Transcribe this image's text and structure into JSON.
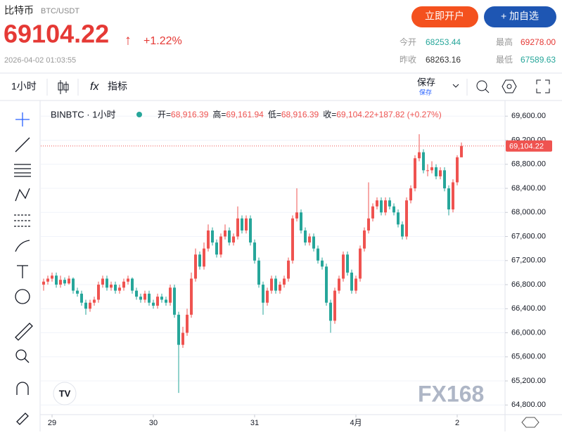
{
  "header": {
    "name": "比特币",
    "pair": "BTC/USDT",
    "price": "69104.22",
    "arrow": "↑",
    "change": "+1.22%",
    "timestamp": "2026-04-02 01:03:55",
    "buttons": [
      "立即开户",
      "+ 加自选"
    ],
    "stats": [
      {
        "label": "今开",
        "value": "68253.44"
      },
      {
        "label": "最高",
        "value": "69278.00"
      },
      {
        "label": "昨收",
        "value": "68263.16"
      },
      {
        "label": "最低",
        "value": "67589.63"
      }
    ]
  },
  "toolbar": {
    "interval": "1小时",
    "indicators": "指标",
    "save": "保存",
    "save_sub": "保存"
  },
  "chart_data": {
    "type": "candlestick",
    "symbol": "BINBTC · 1小时",
    "legend": [
      {
        "label": "开=",
        "value": "68,916.39"
      },
      {
        "label": "高=",
        "value": "69,161.94"
      },
      {
        "label": "低=",
        "value": "68,916.39"
      },
      {
        "label": "收=",
        "value": "69,104.22"
      },
      {
        "label": "",
        "value": "+187.82 (+0.27%)"
      }
    ],
    "up_color": "#ef5350",
    "down_color": "#26a69a",
    "xlim": [
      -1,
      109
    ],
    "xticks": [
      {
        "value": 2,
        "label": "29"
      },
      {
        "value": 26,
        "label": "30"
      },
      {
        "value": 50,
        "label": "31"
      },
      {
        "value": 74,
        "label": "4月"
      },
      {
        "value": 98,
        "label": "2"
      }
    ],
    "ylim": [
      64640,
      69860
    ],
    "yticks": [
      {
        "value": 64800,
        "label": "64,800.00"
      },
      {
        "value": 65200,
        "label": "65,200.00"
      },
      {
        "value": 65600,
        "label": "65,600.00"
      },
      {
        "value": 66000,
        "label": "66,000.00"
      },
      {
        "value": 66400,
        "label": "66,400.00"
      },
      {
        "value": 66800,
        "label": "66,800.00"
      },
      {
        "value": 67200,
        "label": "67,200.00"
      },
      {
        "value": 67600,
        "label": "67,600.00"
      },
      {
        "value": 68000,
        "label": "68,000.00"
      },
      {
        "value": 68400,
        "label": "68,400.00"
      },
      {
        "value": 68800,
        "label": "68,800.00"
      },
      {
        "value": 69200,
        "label": "69,200.00"
      },
      {
        "value": 69600,
        "label": "69,600.00"
      }
    ],
    "last_price": {
      "value": 69104.22,
      "label": "69,104.22"
    },
    "ohlc": [
      [
        66800,
        66900,
        66700,
        66850
      ],
      [
        66850,
        66950,
        66800,
        66900
      ],
      [
        66900,
        67000,
        66850,
        66950
      ],
      [
        66950,
        67000,
        66750,
        66800
      ],
      [
        66800,
        66950,
        66750,
        66880
      ],
      [
        66880,
        66920,
        66780,
        66820
      ],
      [
        66820,
        66950,
        66800,
        66900
      ],
      [
        66900,
        66920,
        66650,
        66700
      ],
      [
        66700,
        66750,
        66600,
        66650
      ],
      [
        66650,
        66700,
        66450,
        66500
      ],
      [
        66500,
        66550,
        66300,
        66400
      ],
      [
        66400,
        66550,
        66350,
        66500
      ],
      [
        66500,
        66600,
        66450,
        66550
      ],
      [
        66550,
        66850,
        66500,
        66800
      ],
      [
        66800,
        66950,
        66750,
        66900
      ],
      [
        66900,
        66950,
        66700,
        66750
      ],
      [
        66750,
        66850,
        66700,
        66800
      ],
      [
        66800,
        66850,
        66650,
        66700
      ],
      [
        66700,
        66800,
        66650,
        66750
      ],
      [
        66750,
        66900,
        66700,
        66850
      ],
      [
        66850,
        66950,
        66800,
        66900
      ],
      [
        66900,
        66920,
        66650,
        66700
      ],
      [
        66700,
        66750,
        66550,
        66600
      ],
      [
        66600,
        66650,
        66500,
        66550
      ],
      [
        66550,
        66700,
        66500,
        66650
      ],
      [
        66650,
        66700,
        66450,
        66500
      ],
      [
        66500,
        66550,
        66400,
        66450
      ],
      [
        66450,
        66650,
        66400,
        66600
      ],
      [
        66600,
        66650,
        66500,
        66550
      ],
      [
        66550,
        66600,
        66450,
        66500
      ],
      [
        66500,
        66800,
        66450,
        66750
      ],
      [
        66750,
        66800,
        66250,
        66300
      ],
      [
        66300,
        66350,
        65000,
        65800
      ],
      [
        65800,
        66100,
        65750,
        66000
      ],
      [
        66000,
        66400,
        65950,
        66300
      ],
      [
        66300,
        67000,
        66250,
        66900
      ],
      [
        66900,
        67400,
        66850,
        67300
      ],
      [
        67300,
        67350,
        67050,
        67100
      ],
      [
        67100,
        67500,
        67050,
        67400
      ],
      [
        67400,
        67800,
        67350,
        67700
      ],
      [
        67700,
        67750,
        67450,
        67500
      ],
      [
        67500,
        67550,
        67250,
        67300
      ],
      [
        67300,
        67650,
        67250,
        67600
      ],
      [
        67600,
        67800,
        67550,
        67700
      ],
      [
        67700,
        67750,
        67450,
        67500
      ],
      [
        67500,
        67650,
        67450,
        67600
      ],
      [
        67600,
        68100,
        67550,
        67900
      ],
      [
        67900,
        67950,
        67650,
        67700
      ],
      [
        67700,
        67950,
        67650,
        67900
      ],
      [
        67900,
        67950,
        67450,
        67500
      ],
      [
        67500,
        67550,
        67150,
        67200
      ],
      [
        67200,
        67250,
        66750,
        66800
      ],
      [
        66800,
        66850,
        66300,
        66500
      ],
      [
        66500,
        66750,
        66450,
        66700
      ],
      [
        66700,
        66950,
        66650,
        66900
      ],
      [
        66900,
        66950,
        66650,
        66700
      ],
      [
        66700,
        66850,
        66650,
        66800
      ],
      [
        66800,
        66950,
        66750,
        66900
      ],
      [
        66900,
        67250,
        66850,
        67200
      ],
      [
        67200,
        67950,
        67150,
        67900
      ],
      [
        67900,
        68400,
        67850,
        68000
      ],
      [
        68000,
        68050,
        67650,
        67700
      ],
      [
        67700,
        67750,
        67450,
        67500
      ],
      [
        67500,
        67650,
        67450,
        67600
      ],
      [
        67600,
        67650,
        67350,
        67400
      ],
      [
        67400,
        67450,
        67150,
        67200
      ],
      [
        67200,
        67250,
        67050,
        67100
      ],
      [
        67100,
        67150,
        66450,
        66500
      ],
      [
        66500,
        66550,
        66000,
        66200
      ],
      [
        66200,
        66750,
        66150,
        66700
      ],
      [
        66700,
        66950,
        66650,
        66900
      ],
      [
        66900,
        67350,
        66850,
        67300
      ],
      [
        67300,
        67350,
        66950,
        67000
      ],
      [
        67000,
        67050,
        66650,
        66700
      ],
      [
        66700,
        66950,
        66650,
        66900
      ],
      [
        66900,
        67450,
        66850,
        67400
      ],
      [
        67400,
        67750,
        67350,
        67700
      ],
      [
        67700,
        68500,
        67650,
        67900
      ],
      [
        67900,
        68150,
        67850,
        68100
      ],
      [
        68100,
        68250,
        68050,
        68200
      ],
      [
        68200,
        68250,
        67950,
        68000
      ],
      [
        68000,
        68250,
        67950,
        68200
      ],
      [
        68200,
        68250,
        68050,
        68100
      ],
      [
        68100,
        68150,
        67950,
        68000
      ],
      [
        68000,
        68050,
        67750,
        67800
      ],
      [
        67800,
        67850,
        67550,
        67600
      ],
      [
        67600,
        68250,
        67550,
        68200
      ],
      [
        68200,
        68450,
        68150,
        68400
      ],
      [
        68400,
        68950,
        68350,
        68900
      ],
      [
        68900,
        69300,
        68850,
        69000
      ],
      [
        69000,
        69050,
        68650,
        68700
      ],
      [
        68700,
        68800,
        68600,
        68700
      ],
      [
        68700,
        68850,
        68650,
        68750
      ],
      [
        68750,
        68800,
        68550,
        68600
      ],
      [
        68600,
        68750,
        68550,
        68700
      ],
      [
        68700,
        68750,
        68350,
        68400
      ],
      [
        68400,
        68450,
        67950,
        68050
      ],
      [
        68050,
        68550,
        68000,
        68500
      ],
      [
        68500,
        68950,
        68450,
        68916
      ],
      [
        68916,
        69162,
        68916,
        69104
      ]
    ]
  },
  "watermark": "FX168"
}
